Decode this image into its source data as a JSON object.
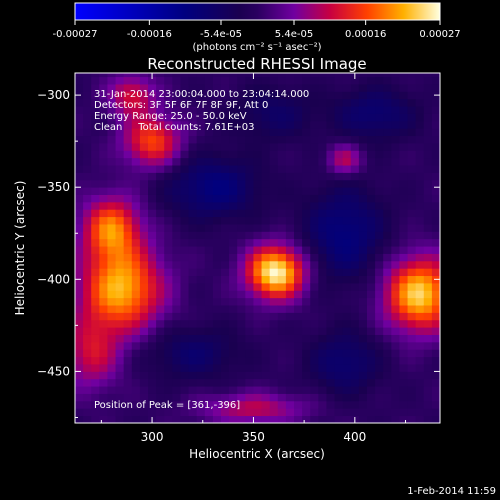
{
  "chart_data": {
    "type": "heatmap",
    "title": "Reconstructed RHESSI Image",
    "xlabel": "Heliocentric X (arcsec)",
    "ylabel": "Heliocentric Y (arcsec)",
    "xlim": [
      262,
      442
    ],
    "ylim": [
      -478,
      -288
    ],
    "x_ticks": [
      300,
      350,
      400
    ],
    "y_ticks": [
      -300,
      -350,
      -400,
      -450
    ],
    "colorbar": {
      "ticks": [
        "-0.00027",
        "-0.00016",
        "-5.4e-05",
        "5.4e-05",
        "0.00016",
        "0.00027"
      ],
      "tick_values": [
        -0.00027,
        -0.00016,
        -5.4e-05,
        5.4e-05,
        0.00016,
        0.00027
      ],
      "range": [
        -0.00027,
        0.00027
      ],
      "units_label": "(photons cm⁻² s⁻¹ asec⁻²)"
    },
    "info_lines": [
      "31-Jan-2014 23:00:04.000 to 23:04:14.000",
      "Detectors: 3F 5F 6F 7F 8F 9F, Att 0",
      "Energy Range: 25.0 - 50.0 keV",
      "Clean     Total counts: 7.61E+03"
    ],
    "peak_label": "Position of Peak = [361,-396]",
    "sources": [
      {
        "x": 361,
        "y": -396,
        "value": 0.00027,
        "sx": 10,
        "sy": 10
      },
      {
        "x": 432,
        "y": -408,
        "value": 0.00024,
        "sx": 12,
        "sy": 14
      },
      {
        "x": 285,
        "y": -405,
        "value": 0.00022,
        "sx": 14,
        "sy": 16
      },
      {
        "x": 280,
        "y": -372,
        "value": 0.00018,
        "sx": 10,
        "sy": 12
      },
      {
        "x": 300,
        "y": -325,
        "value": 0.00016,
        "sx": 10,
        "sy": 10
      },
      {
        "x": 290,
        "y": -300,
        "value": 0.00012,
        "sx": 8,
        "sy": 8
      },
      {
        "x": 270,
        "y": -440,
        "value": 0.00011,
        "sx": 10,
        "sy": 14
      },
      {
        "x": 395,
        "y": -335,
        "value": 0.0001,
        "sx": 6,
        "sy": 6
      },
      {
        "x": 350,
        "y": -470,
        "value": 0.0001,
        "sx": 18,
        "sy": 6
      }
    ],
    "negative_regions": [
      {
        "x": 330,
        "y": -350,
        "value": -0.0001,
        "sx": 16,
        "sy": 12
      },
      {
        "x": 395,
        "y": -375,
        "value": -0.0001,
        "sx": 14,
        "sy": 18
      },
      {
        "x": 410,
        "y": -310,
        "value": -8e-05,
        "sx": 14,
        "sy": 10
      },
      {
        "x": 360,
        "y": -310,
        "value": -6e-05,
        "sx": 14,
        "sy": 10
      },
      {
        "x": 320,
        "y": -440,
        "value": -7e-05,
        "sx": 16,
        "sy": 10
      },
      {
        "x": 395,
        "y": -445,
        "value": -8e-05,
        "sx": 12,
        "sy": 12
      }
    ]
  },
  "timestamp": "1-Feb-2014 11:59"
}
